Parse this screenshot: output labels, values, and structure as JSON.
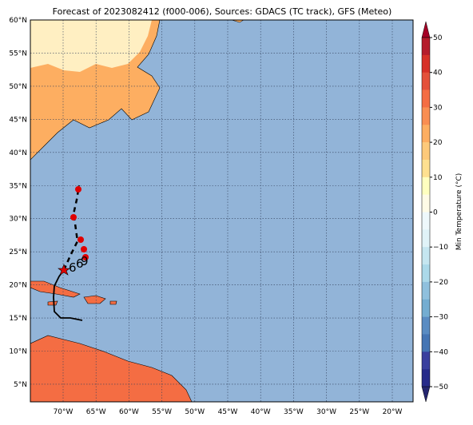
{
  "map": {
    "title": "Forecast of 2023082412 (f000-006), Sources: GDACS (TC track), GFS (Meteo)",
    "lat_labels": [
      "60°N",
      "55°N",
      "50°N",
      "45°N",
      "40°N",
      "35°N",
      "30°N",
      "25°N",
      "20°N",
      "15°N",
      "10°N",
      "5°N"
    ],
    "lon_labels": [
      "70°W",
      "65°W",
      "60°W",
      "55°W",
      "50°W",
      "45°W",
      "40°W",
      "35°W",
      "30°W",
      "25°W",
      "20°W"
    ],
    "track_labels": [
      "6",
      "6",
      "9"
    ],
    "colorbar": {
      "label": "Min Temperature (°C)",
      "ticks": [
        "50",
        "40",
        "30",
        "20",
        "10",
        "0",
        "−10",
        "−20",
        "−30",
        "−40",
        "−50"
      ],
      "colors": [
        "#b51c2b",
        "#d73027",
        "#e4503a",
        "#f46d43",
        "#f98e52",
        "#fdae61",
        "#fdc97a",
        "#fee090",
        "#ffffbf",
        "#fffbe6",
        "#eef8fb",
        "#e0f3f8",
        "#c5e6f0",
        "#abd9e9",
        "#8fc0dd",
        "#74add1",
        "#5a8cc2",
        "#4575b4",
        "#3a3f9e",
        "#262a8a"
      ]
    }
  }
}
